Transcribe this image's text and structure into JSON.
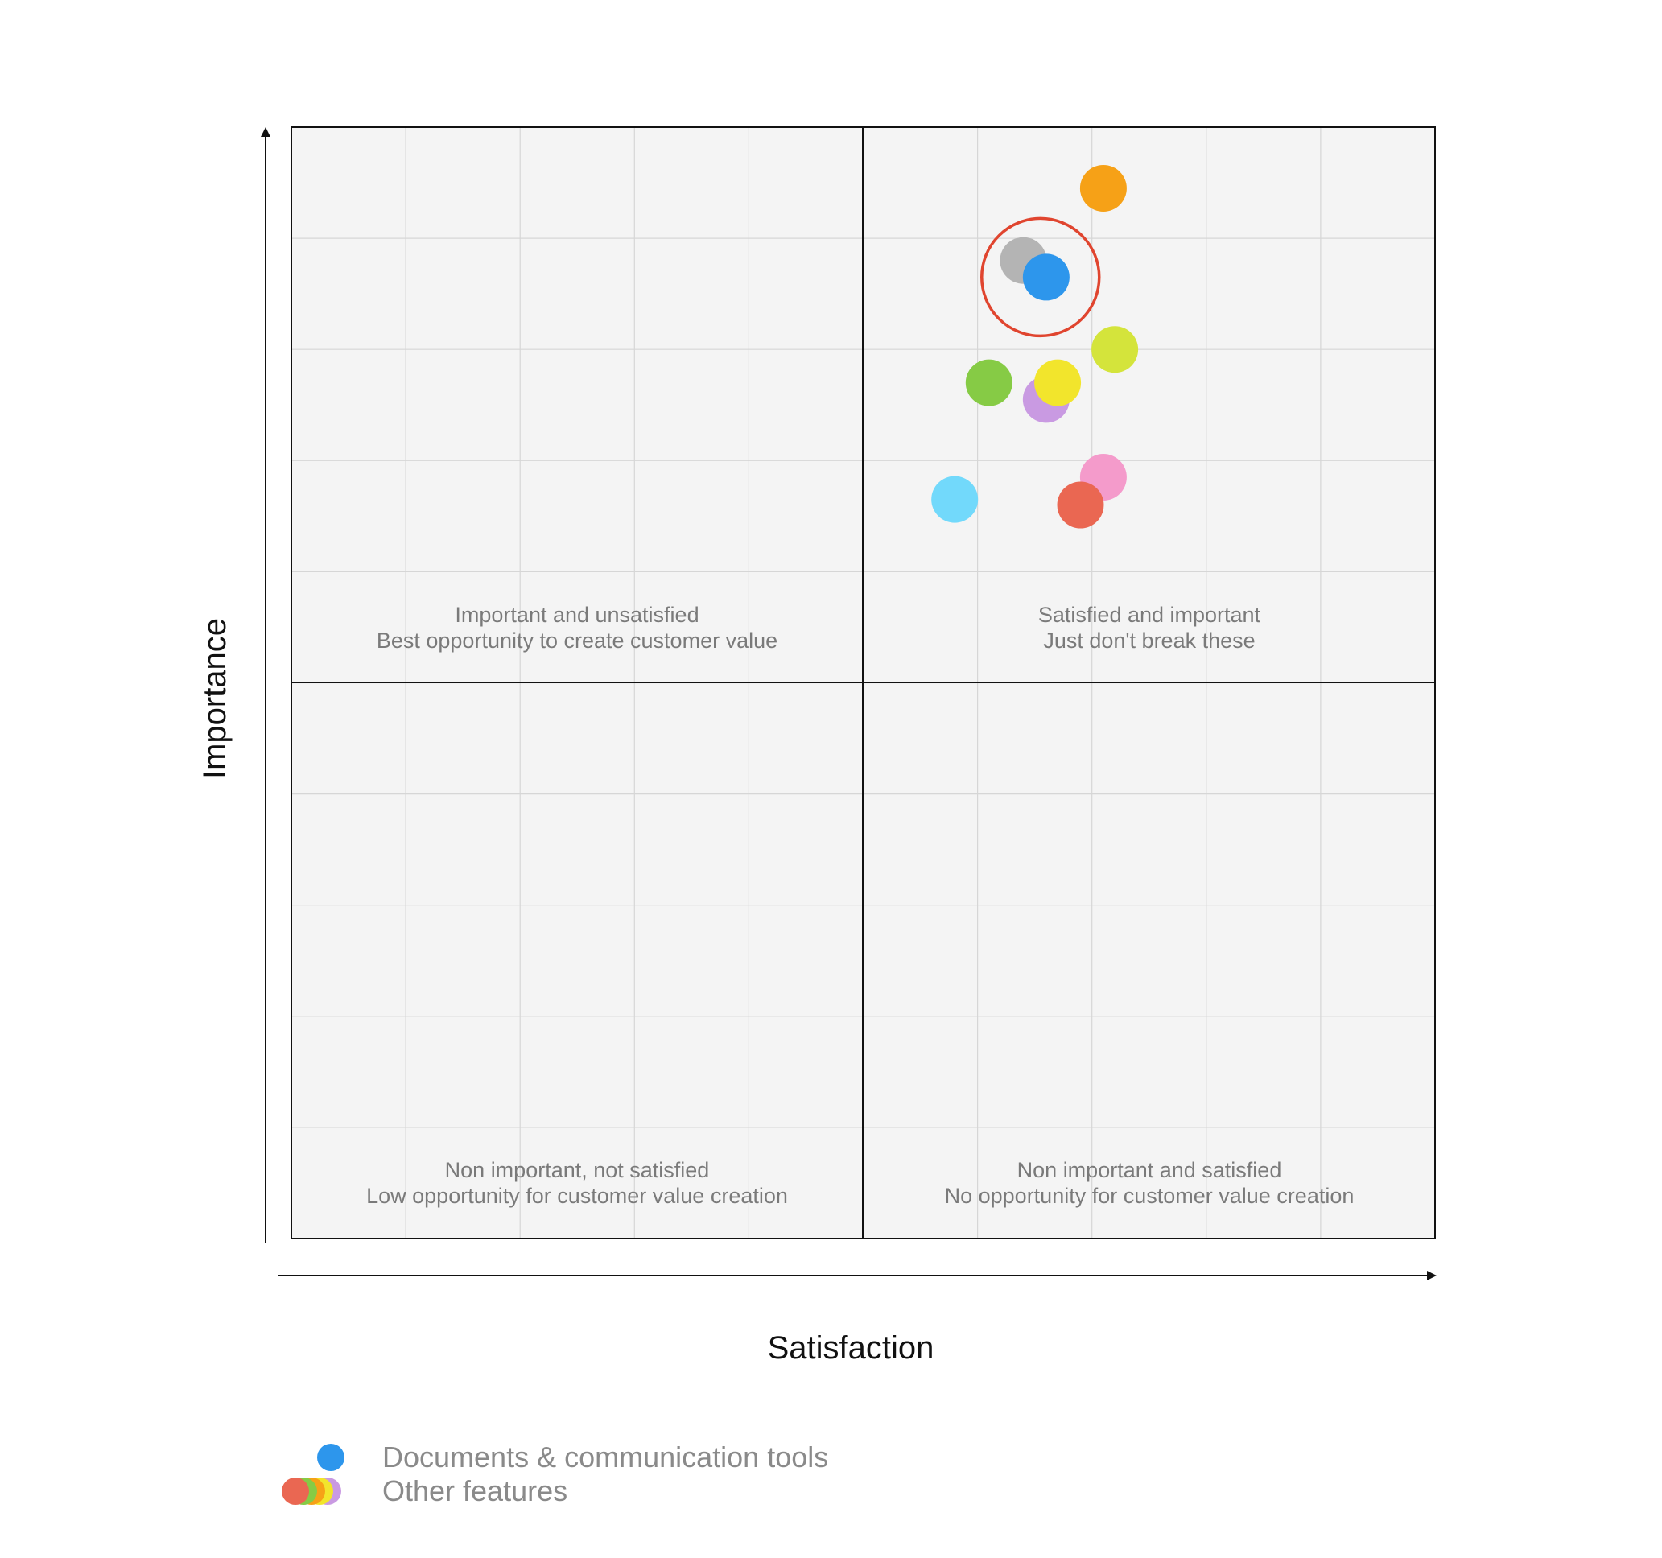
{
  "chart_data": {
    "type": "scatter",
    "title": "",
    "xlabel": "Satisfaction",
    "ylabel": "Importance",
    "xlim": [
      0,
      10
    ],
    "ylim": [
      0,
      10
    ],
    "grid": true,
    "quadrants": {
      "top_left": [
        "Important and unsatisfied",
        "Best opportunity to create customer value"
      ],
      "top_right": [
        "Satisfied and important",
        "Just don't break these"
      ],
      "bottom_left": [
        "Non important, not satisfied",
        "Low opportunity for customer value creation"
      ],
      "bottom_right": [
        "Non important and satisfied",
        "No opportunity for customer value creation"
      ]
    },
    "points": [
      {
        "name": "orange",
        "x": 7.1,
        "y": 9.45,
        "color": "#F6A117",
        "group": "other"
      },
      {
        "name": "gray",
        "x": 6.4,
        "y": 8.8,
        "color": "#B4B4B4",
        "group": "other"
      },
      {
        "name": "documents-communication",
        "x": 6.6,
        "y": 8.65,
        "color": "#2D96EC",
        "group": "highlight"
      },
      {
        "name": "lime",
        "x": 7.2,
        "y": 8.0,
        "color": "#D4E43B",
        "group": "other"
      },
      {
        "name": "green",
        "x": 6.1,
        "y": 7.7,
        "color": "#86CB45",
        "group": "other"
      },
      {
        "name": "purple",
        "x": 6.6,
        "y": 7.55,
        "color": "#C99AE2",
        "group": "other"
      },
      {
        "name": "yellow",
        "x": 6.7,
        "y": 7.7,
        "color": "#F2E52C",
        "group": "other"
      },
      {
        "name": "pink",
        "x": 7.1,
        "y": 6.85,
        "color": "#F49BCB",
        "group": "other"
      },
      {
        "name": "red",
        "x": 6.9,
        "y": 6.6,
        "color": "#EA6752",
        "group": "other"
      },
      {
        "name": "sky-blue",
        "x": 5.8,
        "y": 6.65,
        "color": "#72D9FB",
        "group": "other"
      }
    ],
    "highlight_circle": {
      "x": 6.55,
      "y": 8.65,
      "color": "#E0452F"
    },
    "legend": [
      {
        "label": "Documents & communication tools",
        "colors": [
          "#2D96EC"
        ]
      },
      {
        "label": "Other features",
        "colors": [
          "#EA6752",
          "#86CB45",
          "#F6A117",
          "#F2E52C",
          "#C99AE2"
        ]
      }
    ]
  }
}
